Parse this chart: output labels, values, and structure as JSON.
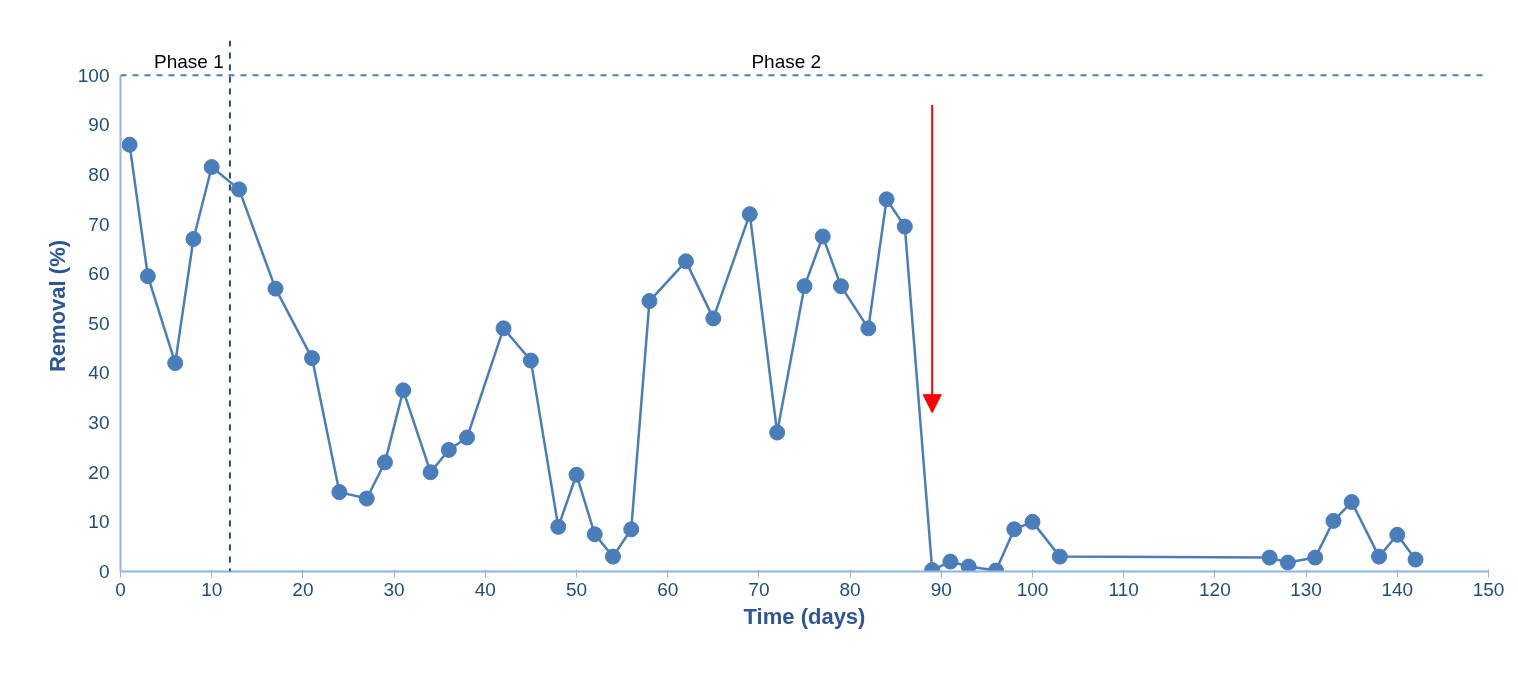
{
  "chart_data": {
    "type": "line",
    "xlabel": "Time (days)",
    "ylabel": "Removal (%)",
    "x": [
      1,
      3,
      6,
      8,
      10,
      13,
      17,
      21,
      24,
      27,
      29,
      31,
      34,
      36,
      38,
      42,
      45,
      48,
      50,
      52,
      54,
      56,
      58,
      62,
      65,
      69,
      72,
      75,
      77,
      79,
      82,
      84,
      86,
      89,
      91,
      93,
      96,
      98,
      100,
      103,
      126,
      128,
      131,
      133,
      135,
      138,
      140,
      142
    ],
    "series": [
      {
        "color": "#4a7ebb",
        "values": [
          86,
          59.5,
          42,
          67,
          81.5,
          77,
          57,
          43,
          16,
          14.7,
          22,
          36.5,
          20,
          24.5,
          27,
          49,
          42.5,
          9,
          19.5,
          7.5,
          3,
          8.5,
          54.5,
          62.5,
          51,
          72,
          28,
          57.5,
          67.5,
          57.5,
          49,
          75,
          69.5,
          0.3,
          2,
          1,
          0.2,
          8.5,
          10,
          3,
          2.8,
          1.8,
          2.8,
          10.2,
          14,
          3,
          7.4,
          2.4
        ]
      }
    ],
    "xlim": [
      0,
      150
    ],
    "xticks": [
      0,
      10,
      20,
      30,
      40,
      50,
      60,
      70,
      80,
      90,
      100,
      110,
      120,
      130,
      140,
      150
    ],
    "ylim": [
      0,
      100
    ],
    "yticks": [
      0,
      10,
      20,
      30,
      40,
      50,
      60,
      70,
      80,
      90,
      100
    ],
    "grid": false,
    "marker": "circle",
    "line_style": "solid",
    "ref_lines": [
      {
        "axis": "y",
        "value": 100,
        "color": "#4a7ebb",
        "line_style": "dashed"
      },
      {
        "axis": "x",
        "value": 12,
        "color": "#1f4e79",
        "line_style": "dashed"
      }
    ],
    "annotations": [
      {
        "text": "Phase 1",
        "x": 7.5,
        "y": 100
      },
      {
        "text": "Phase 2",
        "x": 73,
        "y": 100
      }
    ]
  }
}
